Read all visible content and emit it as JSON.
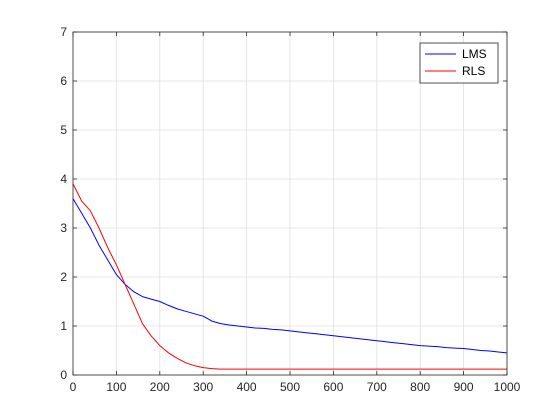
{
  "chart_data": {
    "type": "line",
    "title": "",
    "xlabel": "",
    "ylabel": "",
    "xlim": [
      0,
      1000
    ],
    "ylim": [
      0,
      7
    ],
    "xticks": [
      0,
      100,
      200,
      300,
      400,
      500,
      600,
      700,
      800,
      900,
      1000
    ],
    "yticks": [
      0,
      1,
      2,
      3,
      4,
      5,
      6,
      7
    ],
    "grid": true,
    "legend": "top-right",
    "series": [
      {
        "name": "LMS",
        "color": "#0000ff",
        "x": [
          0,
          20,
          40,
          60,
          80,
          100,
          120,
          140,
          160,
          180,
          200,
          220,
          240,
          260,
          280,
          300,
          320,
          340,
          360,
          380,
          400,
          420,
          440,
          460,
          480,
          500,
          520,
          540,
          560,
          580,
          600,
          620,
          640,
          660,
          680,
          700,
          720,
          740,
          760,
          780,
          800,
          820,
          840,
          860,
          880,
          900,
          920,
          940,
          960,
          980,
          1000
        ],
        "y": [
          3.6,
          3.3,
          3.0,
          2.65,
          2.35,
          2.05,
          1.85,
          1.7,
          1.6,
          1.55,
          1.5,
          1.42,
          1.35,
          1.3,
          1.25,
          1.2,
          1.1,
          1.05,
          1.02,
          1.0,
          0.98,
          0.96,
          0.95,
          0.93,
          0.92,
          0.9,
          0.88,
          0.86,
          0.84,
          0.82,
          0.8,
          0.78,
          0.76,
          0.74,
          0.72,
          0.7,
          0.68,
          0.66,
          0.64,
          0.62,
          0.6,
          0.59,
          0.58,
          0.56,
          0.55,
          0.54,
          0.52,
          0.5,
          0.49,
          0.47,
          0.45
        ]
      },
      {
        "name": "RLS",
        "color": "#ff0000",
        "x": [
          0,
          20,
          40,
          60,
          80,
          100,
          120,
          140,
          160,
          180,
          200,
          220,
          240,
          260,
          280,
          300,
          320,
          340,
          360,
          380,
          400,
          450,
          500,
          550,
          600,
          650,
          700,
          750,
          800,
          850,
          900,
          950,
          1000
        ],
        "y": [
          3.9,
          3.55,
          3.35,
          3.0,
          2.6,
          2.25,
          1.85,
          1.45,
          1.05,
          0.8,
          0.6,
          0.45,
          0.34,
          0.25,
          0.19,
          0.15,
          0.13,
          0.12,
          0.12,
          0.12,
          0.12,
          0.12,
          0.12,
          0.12,
          0.12,
          0.12,
          0.12,
          0.12,
          0.12,
          0.12,
          0.12,
          0.12,
          0.12
        ]
      }
    ]
  }
}
